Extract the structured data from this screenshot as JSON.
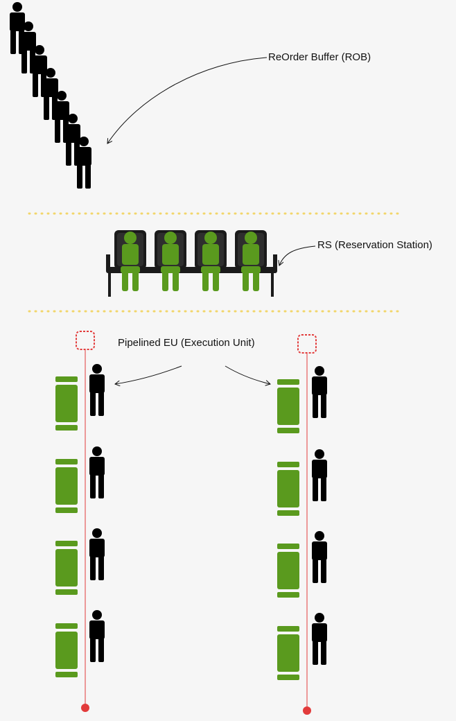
{
  "labels": {
    "rob": "ReOrder Buffer (ROB)",
    "rs": "RS (Reservation Station)",
    "eu": "Pipelined EU (Execution Unit)"
  },
  "colors": {
    "background": "#f6f6f6",
    "person": "#000000",
    "seated_person": "#5a9a1e",
    "chair": "#1b1b1b",
    "stage_block": "#5a9a1e",
    "pipeline_line": "#e23b3b",
    "divider": "#f2d66b"
  },
  "icons": [
    "standing-person-icon",
    "seated-person-icon",
    "chair-icon",
    "pipeline-stage-icon"
  ]
}
